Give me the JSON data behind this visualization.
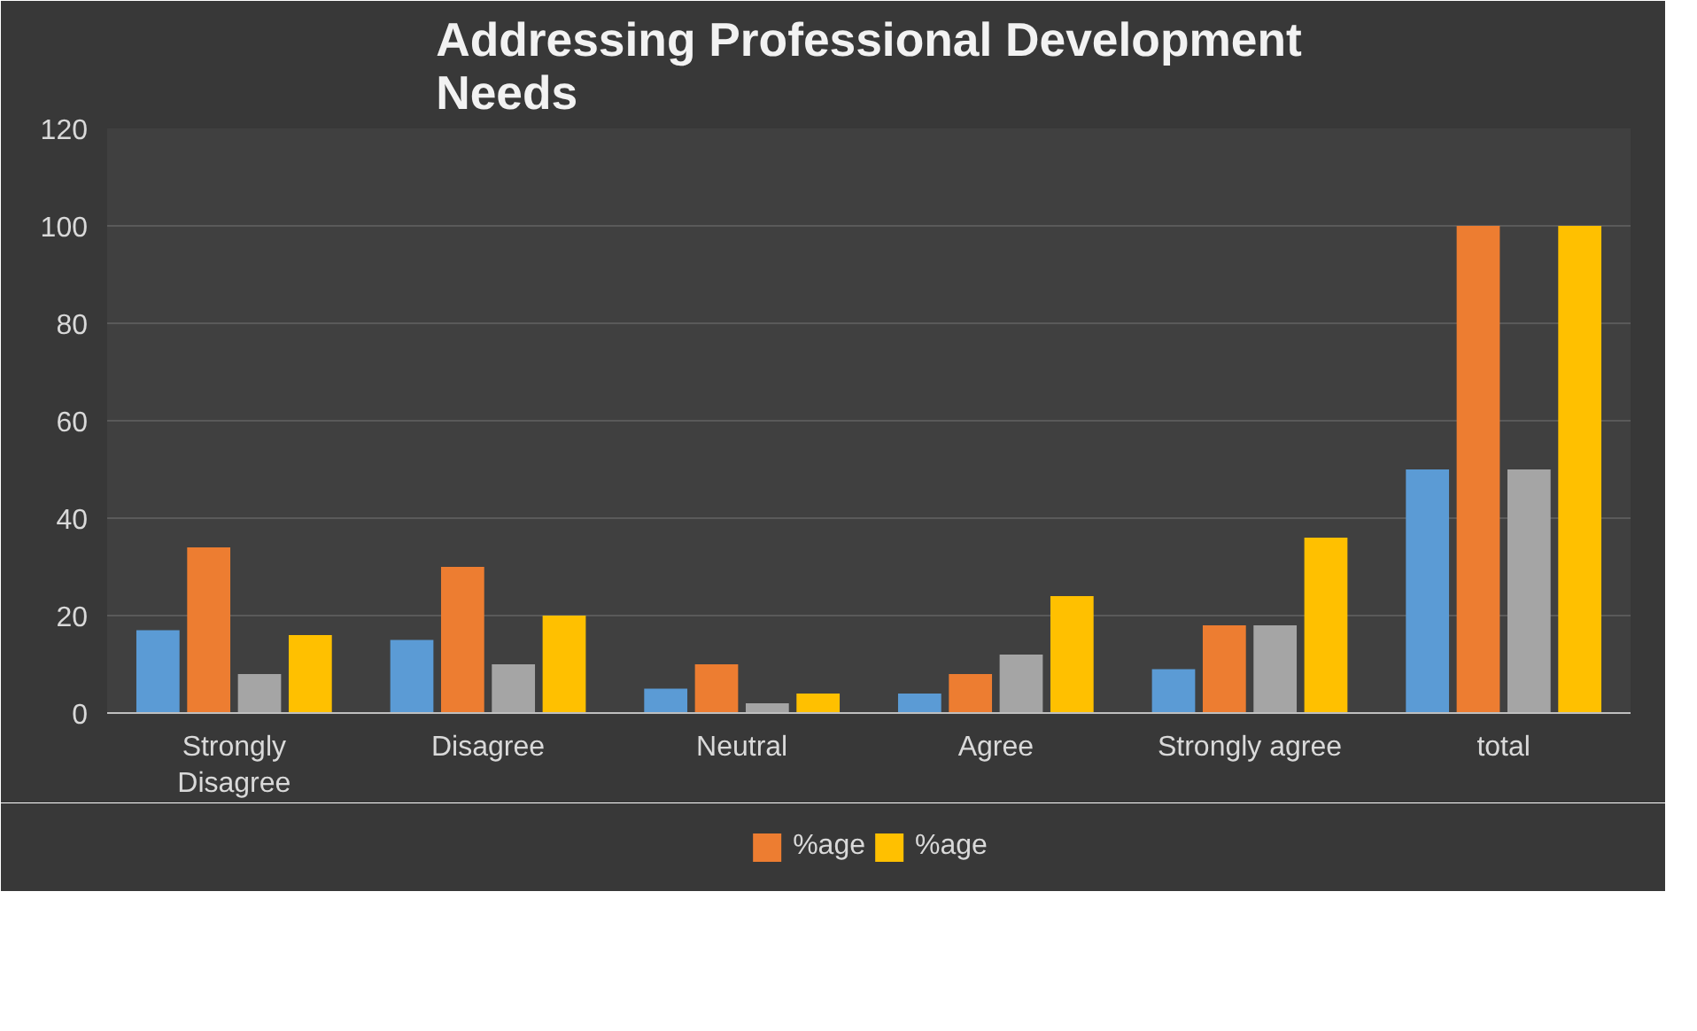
{
  "chart_data": {
    "type": "bar",
    "title": "Addressing Professional Development Needs",
    "categories": [
      "Strongly Disagree",
      "Disagree",
      "Neutral",
      "Agree",
      "Strongly agree",
      "total"
    ],
    "series": [
      {
        "color": "#5b9bd5",
        "values": [
          17,
          15,
          5,
          4,
          9,
          50
        ]
      },
      {
        "name": "%age",
        "color": "#ed7d31",
        "values": [
          34,
          30,
          10,
          8,
          18,
          100
        ]
      },
      {
        "color": "#a5a5a5",
        "values": [
          8,
          10,
          2,
          12,
          18,
          50
        ]
      },
      {
        "name": "%age",
        "color": "#ffc000",
        "values": [
          16,
          20,
          4,
          24,
          36,
          100
        ]
      }
    ],
    "ylim": [
      0,
      120
    ],
    "yticks": [
      0,
      20,
      40,
      60,
      80,
      100,
      120
    ],
    "grid": "y",
    "legend": "bottom"
  }
}
